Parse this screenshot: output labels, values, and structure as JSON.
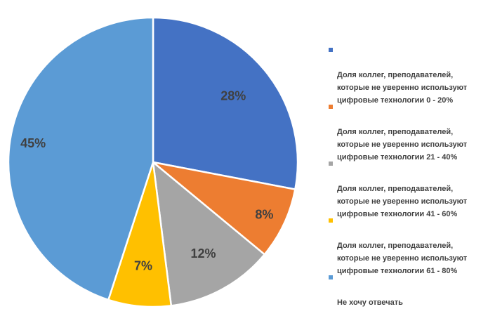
{
  "chart_data": {
    "type": "pie",
    "title": "",
    "categories": [
      "Доля коллег, преподавателей, которые не уверенно используют цифровые технологии 0 - 20%",
      "Доля коллег, преподавателей, которые не уверенно используют цифровые технологии 21 - 40%",
      "Доля коллег, преподавателей, которые не уверенно используют цифровые технологии 41 - 60%",
      "Доля коллег, преподавателей, которые не уверенно используют цифровые технологии 61 - 80%",
      "Не хочу отвечать"
    ],
    "values": [
      28,
      8,
      12,
      7,
      45
    ],
    "data_labels": [
      "28%",
      "8%",
      "12%",
      "7%",
      "45%"
    ],
    "colors": [
      "#4472C4",
      "#ED7D31",
      "#A5A5A5",
      "#FFC000",
      "#5B9BD5"
    ],
    "legend_position": "right"
  },
  "legend": {
    "items": [
      {
        "label": "Доля коллег, преподавателей,\nкоторые не уверенно используют\nцифровые технологии 0 - 20%",
        "color": "#4472C4"
      },
      {
        "label": "Доля коллег, преподавателей,\nкоторые не уверенно используют\nцифровые технологии 21 - 40%",
        "color": "#ED7D31"
      },
      {
        "label": "Доля коллег, преподавателей,\nкоторые не уверенно используют\nцифровые технологии 41 - 60%",
        "color": "#A5A5A5"
      },
      {
        "label": "Доля коллег, преподавателей,\nкоторые не уверенно используют\nцифровые технологии 61 - 80%",
        "color": "#FFC000"
      },
      {
        "label": "Не хочу отвечать",
        "color": "#5B9BD5"
      }
    ]
  }
}
